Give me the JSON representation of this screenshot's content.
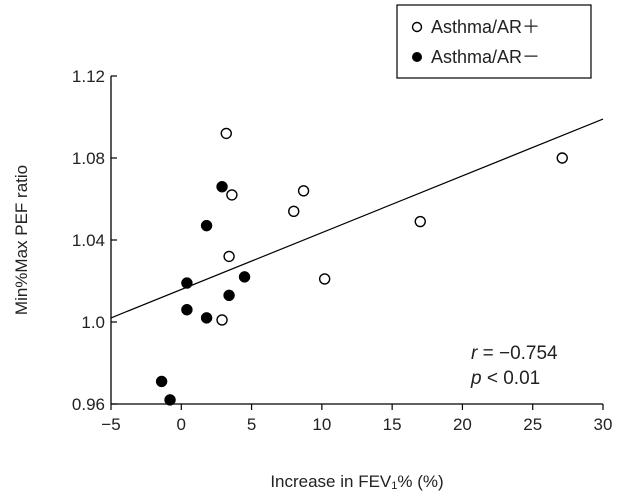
{
  "chart_data": {
    "type": "scatter",
    "xlabel_pre": "Increase in FEV",
    "xlabel_sub": "1",
    "xlabel_post": "% (%)",
    "ylabel": "Min%Max PEF ratio",
    "xlim": [
      -5,
      30
    ],
    "ylim": [
      0.96,
      1.12
    ],
    "x_ticks": [
      -5,
      0,
      5,
      10,
      15,
      20,
      25,
      30
    ],
    "x_tick_labels": [
      "−5",
      "0",
      "5",
      "10",
      "15",
      "20",
      "25",
      "30"
    ],
    "y_ticks": [
      0.96,
      1.0,
      1.04,
      1.08,
      1.12
    ],
    "y_tick_labels": [
      "0.96",
      "1.0",
      "1.04",
      "1.08",
      "1.12"
    ],
    "grid": false,
    "legend_position": "top-right",
    "series": [
      {
        "name": "Asthma/AR＋",
        "marker": "open-circle",
        "points": [
          {
            "x": 3.2,
            "y": 1.092
          },
          {
            "x": 3.6,
            "y": 1.062
          },
          {
            "x": 8.7,
            "y": 1.064
          },
          {
            "x": 8.0,
            "y": 1.054
          },
          {
            "x": 27.1,
            "y": 1.08
          },
          {
            "x": 17.0,
            "y": 1.049
          },
          {
            "x": 3.4,
            "y": 1.032
          },
          {
            "x": 10.2,
            "y": 1.021
          },
          {
            "x": 2.9,
            "y": 1.001
          }
        ]
      },
      {
        "name": "Asthma/AR－",
        "marker": "filled-circle",
        "points": [
          {
            "x": 2.9,
            "y": 1.066
          },
          {
            "x": 1.8,
            "y": 1.047
          },
          {
            "x": 4.5,
            "y": 1.022
          },
          {
            "x": 0.4,
            "y": 1.019
          },
          {
            "x": 3.4,
            "y": 1.013
          },
          {
            "x": 0.4,
            "y": 1.006
          },
          {
            "x": 1.8,
            "y": 1.002
          },
          {
            "x": -1.4,
            "y": 0.971
          },
          {
            "x": -0.8,
            "y": 0.962
          }
        ]
      }
    ],
    "regression_line": {
      "x": [
        -5,
        30
      ],
      "y": [
        1.002,
        1.099
      ]
    },
    "annotations": {
      "r_label": "r",
      "r_value": " = −0.754",
      "p_label": "p",
      "p_value": " < 0.01"
    },
    "colors": {
      "marker": "#000000",
      "axis": "#000000",
      "text": "#222222"
    }
  }
}
